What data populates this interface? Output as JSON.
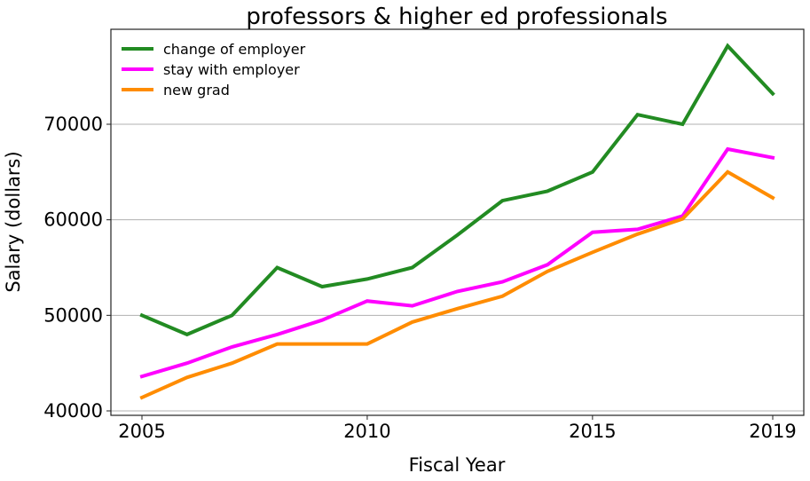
{
  "chart_data": {
    "type": "line",
    "title": "professors & higher ed professionals",
    "xlabel": "Fiscal Year",
    "ylabel": "Salary (dollars)",
    "x": [
      2005,
      2006,
      2007,
      2008,
      2009,
      2010,
      2011,
      2012,
      2013,
      2014,
      2015,
      2016,
      2017,
      2018,
      2019
    ],
    "xticks": [
      2005,
      2010,
      2015,
      2019
    ],
    "yticks": [
      40000,
      50000,
      60000,
      70000
    ],
    "ylim": [
      39500,
      80000
    ],
    "xlim": [
      2004.3,
      2019.7
    ],
    "grid": "y-only",
    "legend_position": "upper left",
    "series": [
      {
        "name": "change of employer",
        "color": "#228b22",
        "values": [
          50000,
          48000,
          50000,
          55000,
          53000,
          53800,
          55000,
          58400,
          62000,
          63000,
          65000,
          71000,
          70000,
          78200,
          73200
        ]
      },
      {
        "name": "stay with employer",
        "color": "#ff00ff",
        "values": [
          43600,
          45000,
          46700,
          48000,
          49500,
          51500,
          51000,
          52500,
          53500,
          55300,
          58700,
          59000,
          60400,
          67400,
          66500
        ]
      },
      {
        "name": "new grad",
        "color": "#ff8c00",
        "values": [
          41400,
          43500,
          45000,
          47000,
          47000,
          47000,
          49300,
          50700,
          52000,
          54600,
          56600,
          58500,
          60100,
          65000,
          62300
        ]
      }
    ]
  }
}
